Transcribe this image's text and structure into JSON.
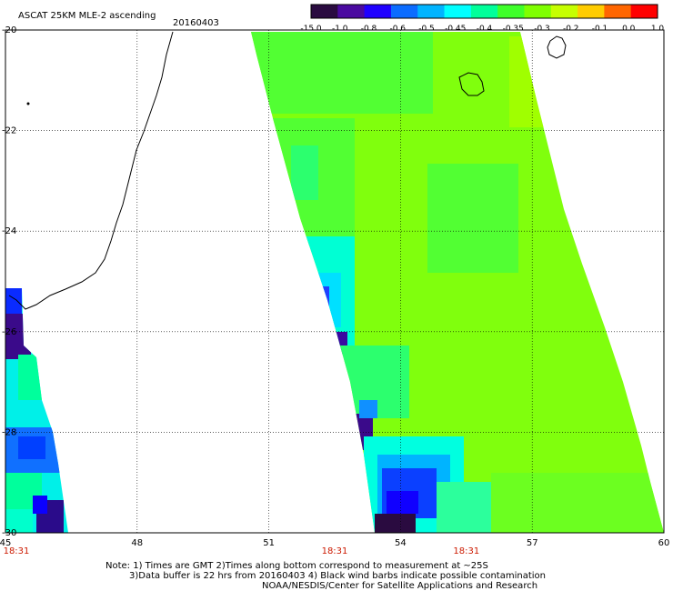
{
  "header": {
    "title": "ASCAT 25KM MLE-2 ascending",
    "date": "20160403"
  },
  "colorbar": {
    "labels": [
      "-15.0",
      "-1.0",
      "-0.8",
      "-0.6",
      "-0.5",
      "-0.45",
      "-0.4",
      "-0.35",
      "-0.3",
      "-0.2",
      "-0.1",
      "0.0",
      "1.0"
    ],
    "colors": [
      "#2a0b40",
      "#4a0aa0",
      "#1f00ff",
      "#0b6cff",
      "#00b4ff",
      "#00ffff",
      "#00ff9a",
      "#3fff2a",
      "#7fff00",
      "#c6ff00",
      "#ffcc00",
      "#ff6600",
      "#ff0000"
    ]
  },
  "map": {
    "lat_labels": [
      "-20",
      "-22",
      "-24",
      "-26",
      "-28",
      "-30"
    ],
    "lon_labels": [
      "45",
      "48",
      "51",
      "54",
      "57",
      "60"
    ],
    "time_labels": [
      "18:31",
      "18:31",
      "18:31"
    ],
    "lon_range": [
      45,
      60
    ],
    "lat_range": [
      -30,
      -20
    ]
  },
  "footer": {
    "note1": "Note: 1) Times are GMT 2)Times along bottom correspond to measurement at ~25S",
    "note2": "3)Data buffer is 22 hrs from 20160403 4) Black wind barbs indicate possible contamination",
    "credit": "NOAA/NESDIS/Center for Satellite Applications and Research"
  }
}
